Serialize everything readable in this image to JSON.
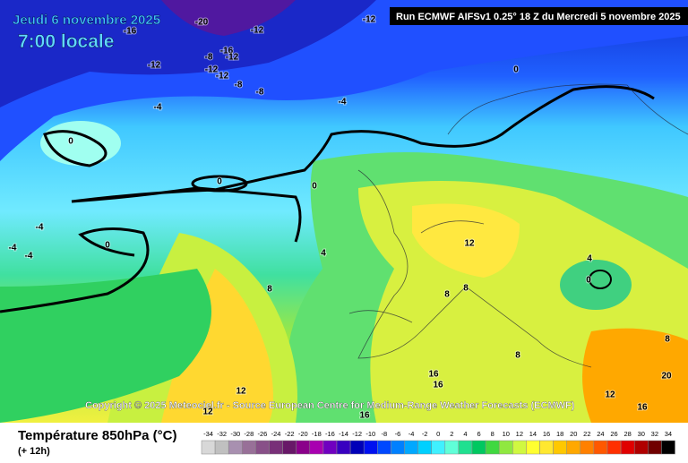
{
  "header": {
    "date": "Jeudi 6 novembre 2025",
    "time": "7:00 locale",
    "run": "Run ECMWF AIFSv1 0.25° 18 Z du Mercredi 5 novembre 2025"
  },
  "copyright": "Copyright © 2025 Meteociel.fr - Source European Centre for Medium-Range Weather Forecasts (ECMWF)",
  "footer": {
    "title": "Température 850hPa (°C)",
    "lead": "(+ 12h)"
  },
  "legend": {
    "values": [
      -34,
      -32,
      -30,
      -28,
      -26,
      -24,
      -22,
      -20,
      -18,
      -16,
      -14,
      -12,
      -10,
      -8,
      -6,
      -4,
      -2,
      0,
      2,
      4,
      6,
      8,
      10,
      12,
      14,
      16,
      18,
      20,
      22,
      24,
      26,
      28,
      30,
      32,
      34
    ],
    "colors": [
      "#d8d8d8",
      "#c0c0c0",
      "#a890b0",
      "#987098",
      "#885088",
      "#783078",
      "#681868",
      "#8a008a",
      "#a800b0",
      "#7000c0",
      "#3800c0",
      "#0000b8",
      "#0010f0",
      "#0048ff",
      "#0080ff",
      "#00a8ff",
      "#00d0ff",
      "#40f0ff",
      "#60ffd8",
      "#20e090",
      "#00c860",
      "#40d840",
      "#90e840",
      "#d0f840",
      "#ffff30",
      "#ffe830",
      "#ffc800",
      "#ffa800",
      "#ff8000",
      "#ff5800",
      "#ff3000",
      "#e00000",
      "#b00000",
      "#700000",
      "#000000"
    ]
  },
  "map": {
    "contour_labels": [
      -20,
      -16,
      -12,
      -12,
      -12,
      -16,
      -12,
      -8,
      -12,
      -12,
      -8,
      -8,
      -4,
      -4,
      0,
      0,
      0,
      0,
      -4,
      -4,
      -4,
      0,
      4,
      8,
      12,
      8,
      8,
      4,
      0,
      8,
      8,
      16,
      16,
      12,
      12,
      16,
      20,
      12,
      16
    ]
  }
}
